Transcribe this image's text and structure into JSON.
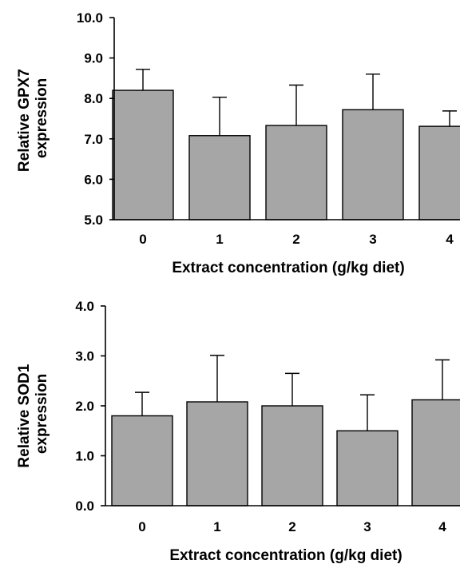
{
  "chart_data": [
    {
      "type": "bar",
      "title": "",
      "ylabel": "Relative GPX7 expression",
      "ylabel_lines": [
        "Relative GPX7",
        "expression"
      ],
      "xlabel": "Extract concentration (g/kg diet)",
      "categories": [
        "0",
        "1",
        "2",
        "3",
        "4"
      ],
      "values": [
        8.2,
        7.08,
        7.33,
        7.72,
        7.31
      ],
      "error_upper": [
        0.52,
        0.95,
        1.0,
        0.88,
        0.38
      ],
      "ylim": [
        5.0,
        10.0
      ],
      "yticks": [
        "5.0",
        "6.0",
        "7.0",
        "8.0",
        "9.0",
        "10.0"
      ],
      "ytick_values": [
        5,
        6,
        7,
        8,
        9,
        10
      ],
      "bar_color": "#a6a6a6",
      "grid": false,
      "legend": "none"
    },
    {
      "type": "bar",
      "title": "",
      "ylabel": "Relative SOD1 expression",
      "ylabel_lines": [
        "Relative SOD1",
        "expression"
      ],
      "xlabel": "Extract concentration (g/kg diet)",
      "categories": [
        "0",
        "1",
        "2",
        "3",
        "4"
      ],
      "values": [
        1.8,
        2.08,
        2.0,
        1.5,
        2.12
      ],
      "error_upper": [
        0.47,
        0.93,
        0.65,
        0.72,
        0.8
      ],
      "ylim": [
        0.0,
        4.0
      ],
      "yticks": [
        "0.0",
        "1.0",
        "2.0",
        "3.0",
        "4.0"
      ],
      "ytick_values": [
        0,
        1,
        2,
        3,
        4
      ],
      "bar_color": "#a6a6a6",
      "grid": false,
      "legend": "none"
    }
  ]
}
